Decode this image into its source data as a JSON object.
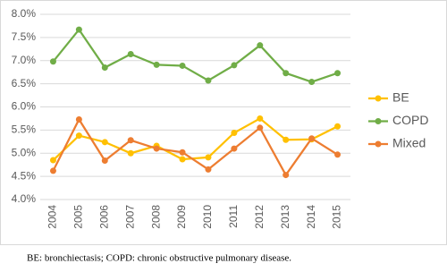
{
  "chart_data": {
    "type": "line",
    "categories": [
      "2004",
      "2005",
      "2006",
      "2007",
      "2008",
      "2009",
      "2010",
      "2011",
      "2012",
      "2013",
      "2014",
      "2015"
    ],
    "series": [
      {
        "name": "BE",
        "color": "#ffc000",
        "values": [
          4.85,
          5.38,
          5.24,
          5.0,
          5.16,
          4.87,
          4.91,
          5.44,
          5.75,
          5.29,
          5.3,
          5.58
        ]
      },
      {
        "name": "COPD",
        "color": "#70ad47",
        "values": [
          6.98,
          7.67,
          6.85,
          7.14,
          6.91,
          6.89,
          6.57,
          6.9,
          7.33,
          6.73,
          6.54,
          6.73
        ]
      },
      {
        "name": "Mixed",
        "color": "#ed7d31",
        "values": [
          4.62,
          5.73,
          4.84,
          5.28,
          5.1,
          5.02,
          4.65,
          5.1,
          5.55,
          4.53,
          5.32,
          4.97
        ]
      }
    ],
    "ylim": [
      4.0,
      8.0
    ],
    "yticks": [
      {
        "value": 4.0,
        "label": "4.0%"
      },
      {
        "value": 4.5,
        "label": "4.5%"
      },
      {
        "value": 5.0,
        "label": "5.0%"
      },
      {
        "value": 5.5,
        "label": "5.5%"
      },
      {
        "value": 6.0,
        "label": "6.0%"
      },
      {
        "value": 6.5,
        "label": "6.5%"
      },
      {
        "value": 7.0,
        "label": "7.0%"
      },
      {
        "value": 7.5,
        "label": "7.5%"
      },
      {
        "value": 8.0,
        "label": "8.0%"
      }
    ],
    "grid": true,
    "legend": "right",
    "caption": "BE: bronchiectasis; COPD: chronic obstructive pulmonary disease."
  }
}
